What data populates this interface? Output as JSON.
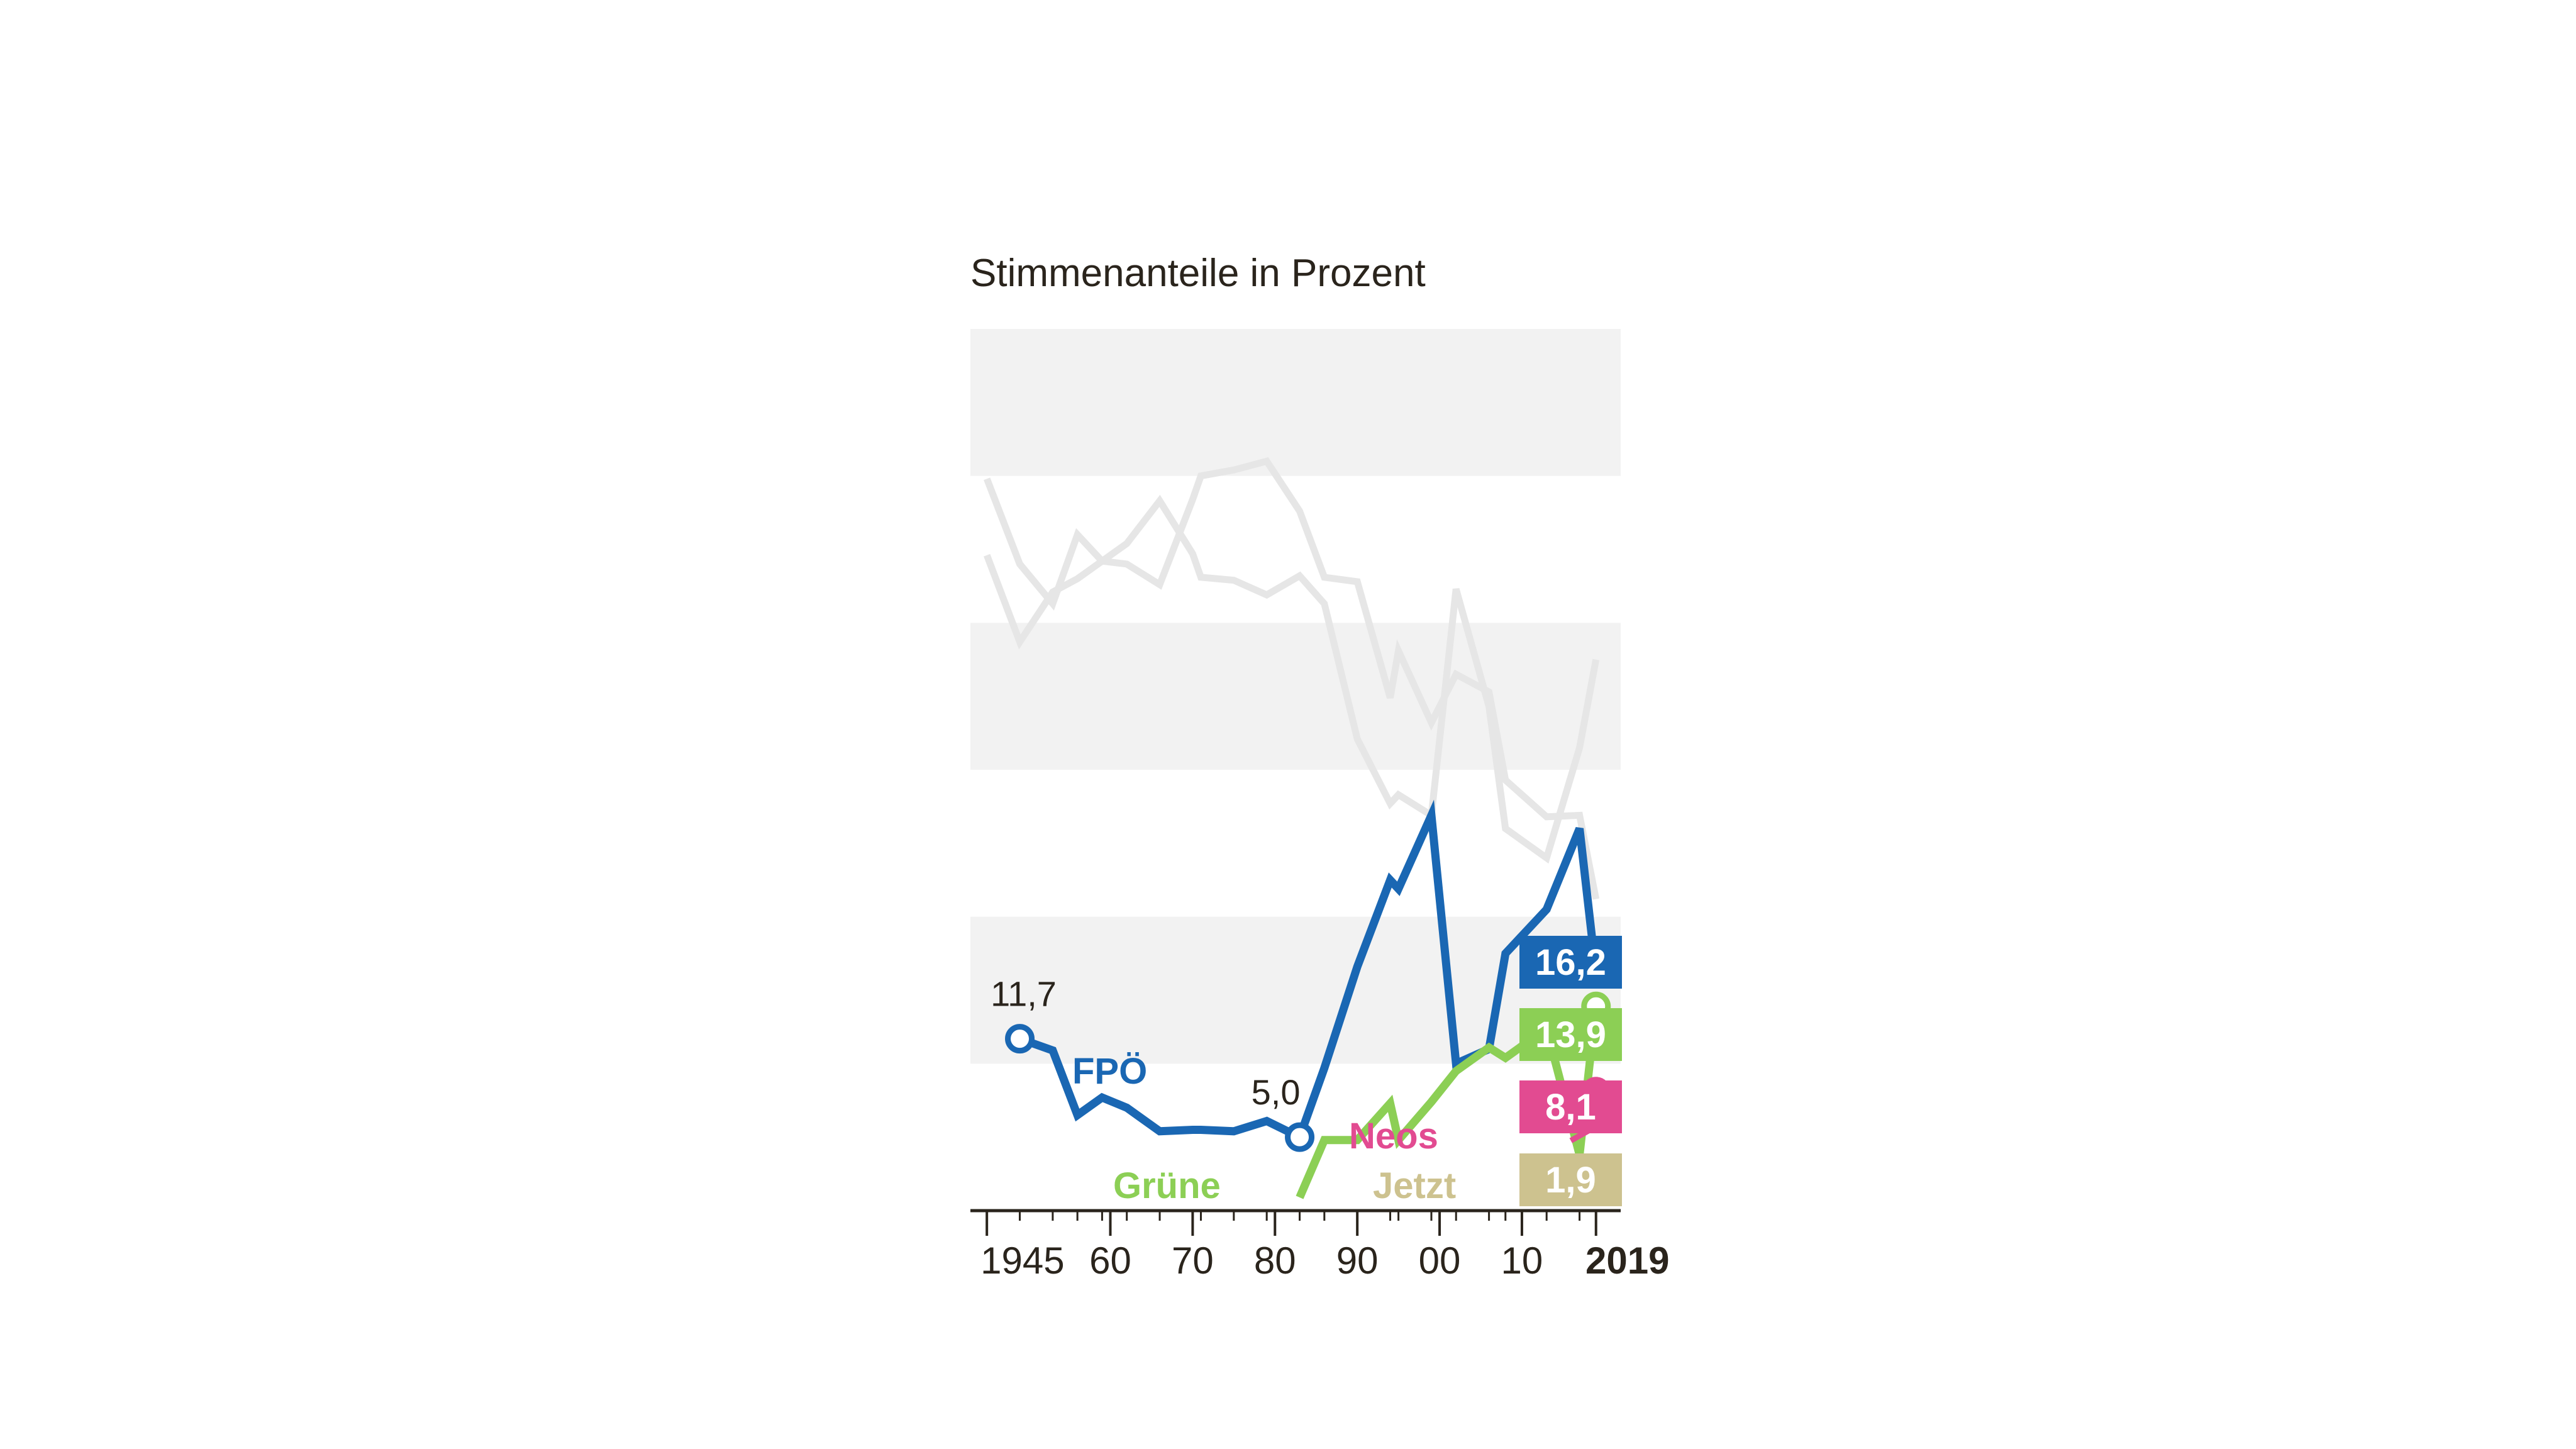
{
  "chart_data": {
    "type": "line",
    "title": "Stimmenanteile in Prozent",
    "xlabel": "",
    "ylabel": "",
    "xlim": [
      1943,
      2022
    ],
    "ylim": [
      0,
      60
    ],
    "grid": "horizontal bands",
    "tick_labels": [
      {
        "year": 1945,
        "label": "1945",
        "bold": false
      },
      {
        "year": 1960,
        "label": "60",
        "bold": false
      },
      {
        "year": 1970,
        "label": "70",
        "bold": false
      },
      {
        "year": 1980,
        "label": "80",
        "bold": false
      },
      {
        "year": 1990,
        "label": "90",
        "bold": false
      },
      {
        "year": 2000,
        "label": "00",
        "bold": false
      },
      {
        "year": 2010,
        "label": "10",
        "bold": false
      },
      {
        "year": 2019,
        "label": "2019",
        "bold": true
      }
    ],
    "minor_tick_years": [
      1945,
      1949,
      1953,
      1956,
      1959,
      1962,
      1966,
      1970,
      1971,
      1975,
      1979,
      1983,
      1986,
      1990,
      1994,
      1995,
      1999,
      2002,
      2006,
      2008,
      2013,
      2017,
      2019
    ],
    "series": [
      {
        "name": "",
        "color": "#e6e6e6",
        "points": [
          [
            1945,
            44.6
          ],
          [
            1949,
            38.7
          ],
          [
            1953,
            42.1
          ],
          [
            1956,
            43.0
          ],
          [
            1959,
            44.2
          ],
          [
            1962,
            44.0
          ],
          [
            1966,
            42.6
          ],
          [
            1970,
            48.4
          ],
          [
            1971,
            50.0
          ],
          [
            1975,
            50.4
          ],
          [
            1979,
            51.0
          ],
          [
            1983,
            47.6
          ],
          [
            1986,
            43.1
          ],
          [
            1990,
            42.8
          ],
          [
            1994,
            34.9
          ],
          [
            1995,
            38.1
          ],
          [
            1999,
            33.2
          ],
          [
            2002,
            36.5
          ],
          [
            2006,
            35.3
          ],
          [
            2008,
            29.3
          ],
          [
            2013,
            26.8
          ],
          [
            2017,
            26.9
          ],
          [
            2019,
            21.2
          ]
        ]
      },
      {
        "name": "",
        "color": "#e6e6e6",
        "points": [
          [
            1945,
            49.8
          ],
          [
            1949,
            44.0
          ],
          [
            1953,
            41.3
          ],
          [
            1956,
            46.0
          ],
          [
            1959,
            44.2
          ],
          [
            1962,
            45.4
          ],
          [
            1966,
            48.3
          ],
          [
            1970,
            44.7
          ],
          [
            1971,
            43.1
          ],
          [
            1975,
            42.9
          ],
          [
            1979,
            41.9
          ],
          [
            1983,
            43.2
          ],
          [
            1986,
            41.3
          ],
          [
            1990,
            32.1
          ],
          [
            1994,
            27.7
          ],
          [
            1995,
            28.3
          ],
          [
            1999,
            26.9
          ],
          [
            2002,
            42.3
          ],
          [
            2006,
            34.3
          ],
          [
            2008,
            26.0
          ],
          [
            2013,
            24.0
          ],
          [
            2017,
            31.5
          ],
          [
            2019,
            37.5
          ]
        ]
      },
      {
        "name": "FPÖ",
        "color": "#1a67b3",
        "points": [
          [
            1949,
            11.7
          ],
          [
            1953,
            10.9
          ],
          [
            1956,
            6.5
          ],
          [
            1959,
            7.7
          ],
          [
            1962,
            7.0
          ],
          [
            1966,
            5.4
          ],
          [
            1970,
            5.5
          ],
          [
            1971,
            5.5
          ],
          [
            1975,
            5.4
          ],
          [
            1979,
            6.1
          ],
          [
            1983,
            5.0
          ],
          [
            1986,
            9.7
          ],
          [
            1990,
            16.6
          ],
          [
            1994,
            22.5
          ],
          [
            1995,
            21.9
          ],
          [
            1999,
            26.9
          ],
          [
            2002,
            10.0
          ],
          [
            2006,
            11.0
          ],
          [
            2008,
            17.5
          ],
          [
            2013,
            20.5
          ],
          [
            2017,
            26.0
          ],
          [
            2019,
            16.2
          ]
        ],
        "end_value": "16,2",
        "start_value": "11,7",
        "marked_value": "5,0"
      },
      {
        "name": "Grüne",
        "color": "#8ccf55",
        "points": [
          [
            1983,
            0.9
          ],
          [
            1986,
            4.8
          ],
          [
            1990,
            4.8
          ],
          [
            1994,
            7.3
          ],
          [
            1995,
            4.8
          ],
          [
            1999,
            7.4
          ],
          [
            2002,
            9.5
          ],
          [
            2006,
            11.1
          ],
          [
            2008,
            10.4
          ],
          [
            2013,
            12.4
          ],
          [
            2017,
            3.8
          ],
          [
            2019,
            13.9
          ]
        ],
        "end_value": "13,9"
      },
      {
        "name": "Neos",
        "color": "#e24b91",
        "points": [
          [
            2019,
            8.1
          ]
        ],
        "end_value": "8,1"
      },
      {
        "name": "Jetzt",
        "color": "#cdc28f",
        "points": [
          [
            2019,
            1.9
          ]
        ],
        "end_value": "1,9"
      }
    ]
  }
}
